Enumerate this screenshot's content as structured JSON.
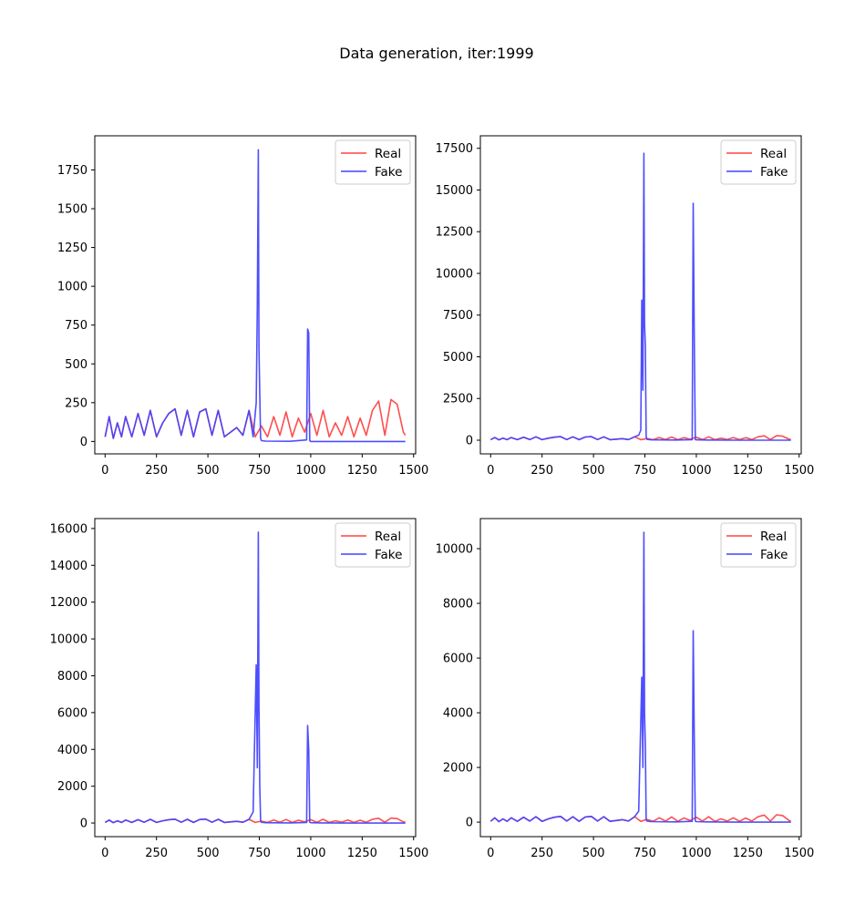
{
  "figure": {
    "suptitle": "Data generation, iter:1999"
  },
  "colors": {
    "real": "#ff4444",
    "fake": "#4444ff",
    "axes": "#000000",
    "legend_border": "#cccccc"
  },
  "chart_data": [
    {
      "type": "line",
      "xlim": [
        -50,
        1510
      ],
      "ylim": [
        -80,
        1970
      ],
      "x_ticks": [
        0,
        250,
        500,
        750,
        1000,
        1250,
        1500
      ],
      "y_ticks": [
        0,
        250,
        500,
        750,
        1000,
        1250,
        1500,
        1750
      ],
      "legend": {
        "position": "top-right",
        "entries": [
          "Real",
          "Fake"
        ]
      },
      "series": [
        {
          "name": "Real",
          "color": "#ff4444",
          "x": [
            0,
            20,
            40,
            60,
            80,
            100,
            130,
            160,
            190,
            220,
            250,
            280,
            310,
            340,
            370,
            400,
            430,
            460,
            490,
            520,
            550,
            580,
            610,
            640,
            670,
            700,
            730,
            760,
            790,
            820,
            850,
            880,
            910,
            940,
            970,
            1000,
            1030,
            1060,
            1090,
            1120,
            1150,
            1180,
            1210,
            1240,
            1270,
            1300,
            1330,
            1360,
            1390,
            1420,
            1450,
            1460
          ],
          "y": [
            30,
            160,
            20,
            120,
            30,
            160,
            30,
            180,
            40,
            200,
            30,
            120,
            180,
            210,
            40,
            200,
            30,
            190,
            210,
            40,
            200,
            30,
            60,
            90,
            40,
            200,
            30,
            100,
            30,
            160,
            40,
            190,
            30,
            150,
            60,
            180,
            40,
            200,
            30,
            120,
            40,
            160,
            30,
            150,
            40,
            200,
            260,
            40,
            270,
            240,
            60,
            40
          ]
        },
        {
          "name": "Fake",
          "color": "#4444ff",
          "x": [
            0,
            20,
            40,
            60,
            80,
            100,
            130,
            160,
            190,
            220,
            250,
            280,
            310,
            340,
            370,
            400,
            430,
            460,
            490,
            520,
            550,
            580,
            610,
            640,
            670,
            700,
            720,
            735,
            740,
            745,
            748,
            752,
            756,
            760,
            780,
            900,
            980,
            985,
            990,
            995,
            1000,
            1050,
            1200,
            1460
          ],
          "y": [
            30,
            160,
            20,
            120,
            30,
            160,
            30,
            180,
            40,
            200,
            30,
            120,
            180,
            210,
            40,
            200,
            30,
            190,
            210,
            40,
            200,
            30,
            60,
            90,
            40,
            200,
            30,
            250,
            870,
            1880,
            600,
            300,
            20,
            5,
            2,
            1,
            10,
            725,
            700,
            5,
            0,
            0,
            0,
            0
          ]
        }
      ]
    },
    {
      "type": "line",
      "xlim": [
        -50,
        1510
      ],
      "ylim": [
        -820,
        18250
      ],
      "x_ticks": [
        0,
        250,
        500,
        750,
        1000,
        1250,
        1500
      ],
      "y_ticks": [
        0,
        2500,
        5000,
        7500,
        10000,
        12500,
        15000,
        17500
      ],
      "legend": {
        "position": "top-right",
        "entries": [
          "Real",
          "Fake"
        ]
      },
      "series": [
        {
          "name": "Real",
          "color": "#ff4444",
          "x": [
            0,
            20,
            40,
            60,
            80,
            100,
            130,
            160,
            190,
            220,
            250,
            280,
            310,
            340,
            370,
            400,
            430,
            460,
            490,
            520,
            550,
            580,
            610,
            640,
            670,
            700,
            730,
            760,
            790,
            820,
            850,
            880,
            910,
            940,
            970,
            1000,
            1030,
            1060,
            1090,
            1120,
            1150,
            1180,
            1210,
            1240,
            1270,
            1300,
            1330,
            1360,
            1390,
            1420,
            1450,
            1460
          ],
          "y": [
            30,
            160,
            20,
            120,
            30,
            160,
            30,
            180,
            40,
            200,
            30,
            120,
            180,
            210,
            40,
            200,
            30,
            190,
            210,
            40,
            200,
            30,
            60,
            90,
            40,
            200,
            30,
            100,
            30,
            160,
            40,
            190,
            30,
            150,
            60,
            180,
            40,
            200,
            30,
            120,
            40,
            160,
            30,
            150,
            40,
            200,
            260,
            40,
            270,
            240,
            60,
            40
          ]
        },
        {
          "name": "Fake",
          "color": "#4444ff",
          "x": [
            0,
            20,
            40,
            60,
            80,
            100,
            130,
            160,
            190,
            220,
            250,
            280,
            310,
            340,
            370,
            400,
            430,
            460,
            490,
            520,
            550,
            580,
            610,
            640,
            670,
            700,
            720,
            730,
            735,
            740,
            745,
            748,
            752,
            756,
            760,
            780,
            900,
            980,
            985,
            990,
            995,
            1000,
            1050,
            1200,
            1460
          ],
          "y": [
            30,
            160,
            20,
            120,
            30,
            160,
            30,
            180,
            40,
            200,
            30,
            120,
            180,
            210,
            40,
            200,
            30,
            190,
            210,
            40,
            200,
            30,
            60,
            90,
            40,
            200,
            300,
            600,
            8400,
            3000,
            17200,
            7000,
            5600,
            200,
            50,
            20,
            10,
            30,
            14200,
            6000,
            40,
            20,
            10,
            0,
            0
          ]
        }
      ]
    },
    {
      "type": "line",
      "xlim": [
        -50,
        1510
      ],
      "ylim": [
        -740,
        16540
      ],
      "x_ticks": [
        0,
        250,
        500,
        750,
        1000,
        1250,
        1500
      ],
      "y_ticks": [
        0,
        2000,
        4000,
        6000,
        8000,
        10000,
        12000,
        14000,
        16000
      ],
      "legend": {
        "position": "top-right",
        "entries": [
          "Real",
          "Fake"
        ]
      },
      "series": [
        {
          "name": "Real",
          "color": "#ff4444",
          "x": [
            0,
            20,
            40,
            60,
            80,
            100,
            130,
            160,
            190,
            220,
            250,
            280,
            310,
            340,
            370,
            400,
            430,
            460,
            490,
            520,
            550,
            580,
            610,
            640,
            670,
            700,
            730,
            760,
            790,
            820,
            850,
            880,
            910,
            940,
            970,
            1000,
            1030,
            1060,
            1090,
            1120,
            1150,
            1180,
            1210,
            1240,
            1270,
            1300,
            1330,
            1360,
            1390,
            1420,
            1450,
            1460
          ],
          "y": [
            30,
            160,
            20,
            120,
            30,
            160,
            30,
            180,
            40,
            200,
            30,
            120,
            180,
            210,
            40,
            200,
            30,
            190,
            210,
            40,
            200,
            30,
            60,
            90,
            40,
            200,
            30,
            100,
            30,
            160,
            40,
            190,
            30,
            150,
            60,
            180,
            40,
            200,
            30,
            120,
            40,
            160,
            30,
            150,
            40,
            200,
            260,
            40,
            270,
            240,
            60,
            40
          ]
        },
        {
          "name": "Fake",
          "color": "#4444ff",
          "x": [
            0,
            20,
            40,
            60,
            80,
            100,
            130,
            160,
            190,
            220,
            250,
            280,
            310,
            340,
            370,
            400,
            430,
            460,
            490,
            520,
            550,
            580,
            610,
            640,
            670,
            700,
            720,
            735,
            740,
            745,
            748,
            752,
            756,
            760,
            780,
            900,
            980,
            985,
            990,
            995,
            1000,
            1050,
            1200,
            1460
          ],
          "y": [
            30,
            160,
            20,
            120,
            30,
            160,
            30,
            180,
            40,
            200,
            30,
            120,
            180,
            210,
            40,
            200,
            30,
            190,
            210,
            40,
            200,
            30,
            60,
            90,
            40,
            200,
            600,
            8600,
            3000,
            15800,
            6400,
            2000,
            100,
            40,
            20,
            10,
            30,
            5300,
            4000,
            40,
            20,
            10,
            0,
            0
          ]
        }
      ]
    },
    {
      "type": "line",
      "xlim": [
        -50,
        1510
      ],
      "ylim": [
        -530,
        11100
      ],
      "x_ticks": [
        0,
        250,
        500,
        750,
        1000,
        1250,
        1500
      ],
      "y_ticks": [
        0,
        2000,
        4000,
        6000,
        8000,
        10000
      ],
      "legend": {
        "position": "top-right",
        "entries": [
          "Real",
          "Fake"
        ]
      },
      "series": [
        {
          "name": "Real",
          "color": "#ff4444",
          "x": [
            0,
            20,
            40,
            60,
            80,
            100,
            130,
            160,
            190,
            220,
            250,
            280,
            310,
            340,
            370,
            400,
            430,
            460,
            490,
            520,
            550,
            580,
            610,
            640,
            670,
            700,
            730,
            760,
            790,
            820,
            850,
            880,
            910,
            940,
            970,
            1000,
            1030,
            1060,
            1090,
            1120,
            1150,
            1180,
            1210,
            1240,
            1270,
            1300,
            1330,
            1360,
            1390,
            1420,
            1450,
            1460
          ],
          "y": [
            30,
            160,
            20,
            120,
            30,
            160,
            30,
            180,
            40,
            200,
            30,
            120,
            180,
            210,
            40,
            200,
            30,
            190,
            210,
            40,
            200,
            30,
            60,
            90,
            40,
            200,
            30,
            100,
            30,
            160,
            40,
            190,
            30,
            150,
            60,
            180,
            40,
            200,
            30,
            120,
            40,
            160,
            30,
            150,
            40,
            200,
            260,
            40,
            270,
            240,
            60,
            40
          ]
        },
        {
          "name": "Fake",
          "color": "#4444ff",
          "x": [
            0,
            20,
            40,
            60,
            80,
            100,
            130,
            160,
            190,
            220,
            250,
            280,
            310,
            340,
            370,
            400,
            430,
            460,
            490,
            520,
            550,
            580,
            610,
            640,
            670,
            700,
            720,
            735,
            740,
            745,
            748,
            752,
            756,
            760,
            780,
            900,
            980,
            985,
            990,
            995,
            1000,
            1050,
            1200,
            1460
          ],
          "y": [
            30,
            160,
            20,
            120,
            30,
            160,
            30,
            180,
            40,
            200,
            30,
            120,
            180,
            210,
            40,
            200,
            30,
            190,
            210,
            40,
            200,
            30,
            60,
            90,
            40,
            200,
            400,
            5300,
            2000,
            10600,
            4000,
            2800,
            100,
            40,
            20,
            10,
            30,
            7000,
            3000,
            40,
            20,
            10,
            0,
            0
          ]
        }
      ]
    }
  ]
}
